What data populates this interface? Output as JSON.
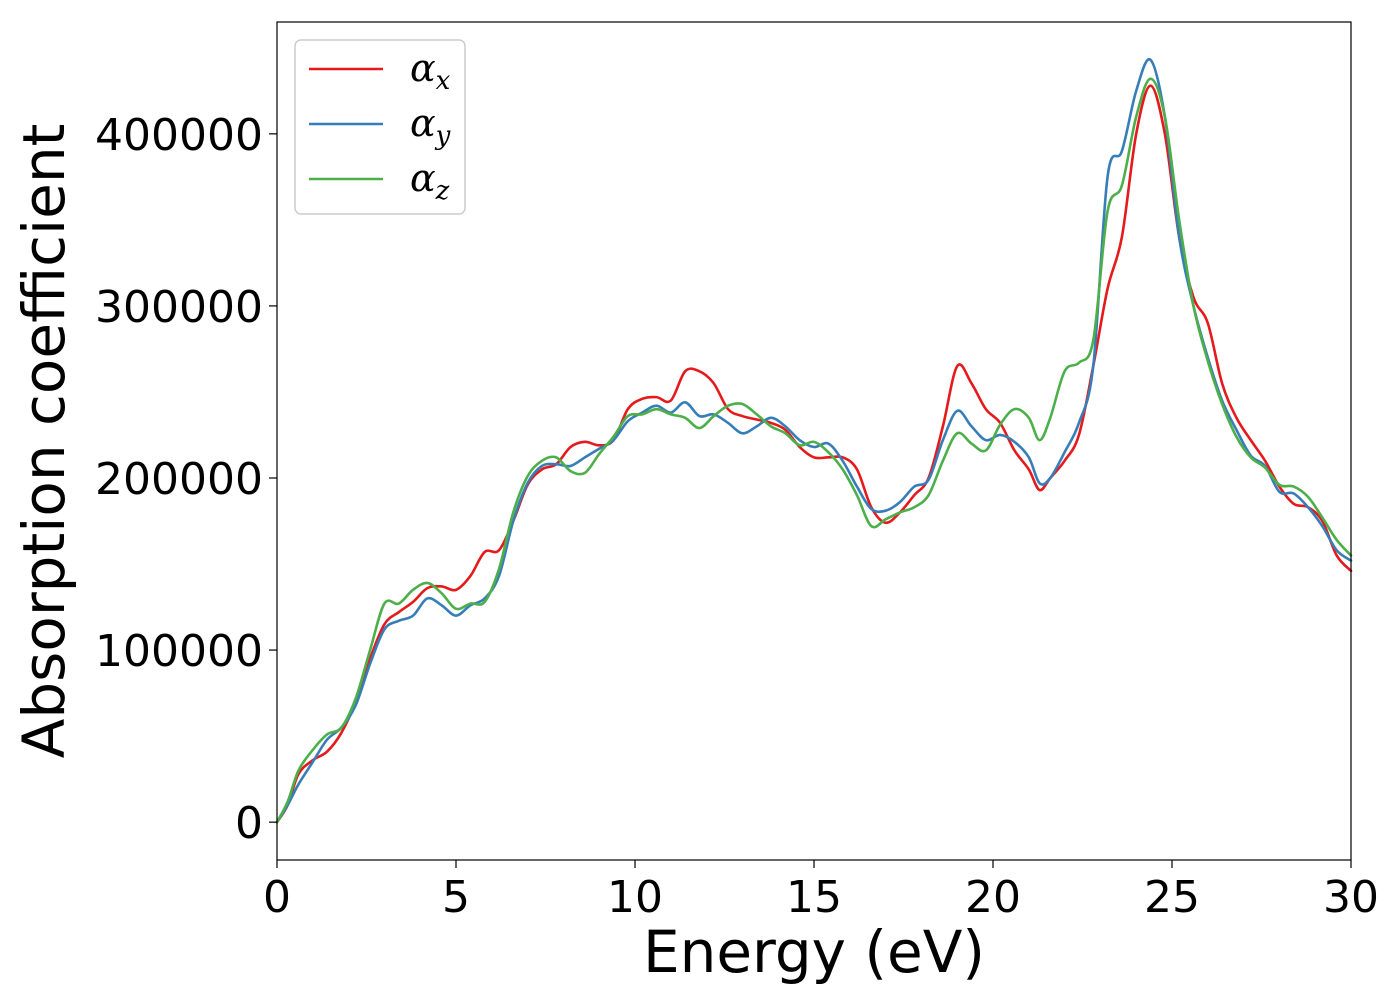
{
  "chart_data": {
    "type": "line",
    "title": "",
    "xlabel": "Energy (eV)",
    "ylabel": "Absorption coefficient",
    "xlim": [
      0,
      30
    ],
    "ylim": [
      -22000,
      465000
    ],
    "xticks": [
      0,
      5,
      10,
      15,
      20,
      25,
      30
    ],
    "yticks": [
      0,
      100000,
      200000,
      300000,
      400000
    ],
    "grid": false,
    "legend_position": "top-left",
    "series": [
      {
        "name": "α",
        "subscript": "x",
        "color": "#e41a1c",
        "points": [
          [
            0,
            0
          ],
          [
            0.3,
            10000
          ],
          [
            0.6,
            28000
          ],
          [
            1.0,
            36000
          ],
          [
            1.4,
            41000
          ],
          [
            1.8,
            52000
          ],
          [
            2.2,
            70000
          ],
          [
            2.6,
            95000
          ],
          [
            3.0,
            115000
          ],
          [
            3.4,
            122000
          ],
          [
            3.8,
            128000
          ],
          [
            4.2,
            136000
          ],
          [
            4.6,
            137000
          ],
          [
            5.0,
            135000
          ],
          [
            5.4,
            143000
          ],
          [
            5.8,
            157000
          ],
          [
            6.2,
            158000
          ],
          [
            6.6,
            175000
          ],
          [
            7.0,
            196000
          ],
          [
            7.4,
            205000
          ],
          [
            7.8,
            208000
          ],
          [
            8.2,
            218000
          ],
          [
            8.6,
            221000
          ],
          [
            9.0,
            219000
          ],
          [
            9.4,
            222000
          ],
          [
            9.8,
            240000
          ],
          [
            10.2,
            246000
          ],
          [
            10.6,
            247000
          ],
          [
            11.0,
            245000
          ],
          [
            11.4,
            262000
          ],
          [
            11.8,
            262000
          ],
          [
            12.2,
            255000
          ],
          [
            12.6,
            240000
          ],
          [
            13.0,
            236000
          ],
          [
            13.4,
            234000
          ],
          [
            13.8,
            232000
          ],
          [
            14.2,
            228000
          ],
          [
            14.6,
            218000
          ],
          [
            15.0,
            212000
          ],
          [
            15.4,
            212000
          ],
          [
            15.8,
            212000
          ],
          [
            16.2,
            205000
          ],
          [
            16.6,
            183000
          ],
          [
            17.0,
            174000
          ],
          [
            17.4,
            180000
          ],
          [
            17.8,
            190000
          ],
          [
            18.2,
            200000
          ],
          [
            18.6,
            230000
          ],
          [
            19.0,
            265000
          ],
          [
            19.4,
            255000
          ],
          [
            19.8,
            240000
          ],
          [
            20.2,
            232000
          ],
          [
            20.6,
            216000
          ],
          [
            21.0,
            205000
          ],
          [
            21.3,
            193000
          ],
          [
            21.6,
            200000
          ],
          [
            22.0,
            210000
          ],
          [
            22.4,
            225000
          ],
          [
            22.8,
            265000
          ],
          [
            23.2,
            310000
          ],
          [
            23.6,
            340000
          ],
          [
            24.0,
            400000
          ],
          [
            24.4,
            428000
          ],
          [
            24.8,
            400000
          ],
          [
            25.2,
            340000
          ],
          [
            25.6,
            305000
          ],
          [
            26.0,
            290000
          ],
          [
            26.4,
            255000
          ],
          [
            26.8,
            235000
          ],
          [
            27.2,
            222000
          ],
          [
            27.6,
            210000
          ],
          [
            28.0,
            195000
          ],
          [
            28.4,
            185000
          ],
          [
            28.8,
            183000
          ],
          [
            29.2,
            175000
          ],
          [
            29.6,
            155000
          ],
          [
            30.0,
            146000
          ]
        ]
      },
      {
        "name": "α",
        "subscript": "y",
        "color": "#377eb8",
        "points": [
          [
            0,
            0
          ],
          [
            0.3,
            10000
          ],
          [
            0.6,
            22000
          ],
          [
            1.0,
            35000
          ],
          [
            1.4,
            48000
          ],
          [
            1.8,
            55000
          ],
          [
            2.2,
            68000
          ],
          [
            2.6,
            92000
          ],
          [
            3.0,
            112000
          ],
          [
            3.4,
            117000
          ],
          [
            3.8,
            120000
          ],
          [
            4.2,
            130000
          ],
          [
            4.6,
            126000
          ],
          [
            5.0,
            120000
          ],
          [
            5.4,
            126000
          ],
          [
            5.8,
            130000
          ],
          [
            6.2,
            143000
          ],
          [
            6.6,
            175000
          ],
          [
            7.0,
            197000
          ],
          [
            7.4,
            207000
          ],
          [
            7.8,
            208000
          ],
          [
            8.2,
            207000
          ],
          [
            8.6,
            212000
          ],
          [
            9.0,
            217000
          ],
          [
            9.4,
            222000
          ],
          [
            9.8,
            233000
          ],
          [
            10.2,
            238000
          ],
          [
            10.6,
            242000
          ],
          [
            11.0,
            238000
          ],
          [
            11.4,
            244000
          ],
          [
            11.8,
            236000
          ],
          [
            12.2,
            237000
          ],
          [
            12.6,
            232000
          ],
          [
            13.0,
            226000
          ],
          [
            13.4,
            230000
          ],
          [
            13.8,
            235000
          ],
          [
            14.2,
            230000
          ],
          [
            14.6,
            222000
          ],
          [
            15.0,
            218000
          ],
          [
            15.4,
            220000
          ],
          [
            15.8,
            210000
          ],
          [
            16.2,
            195000
          ],
          [
            16.6,
            182000
          ],
          [
            17.0,
            181000
          ],
          [
            17.4,
            186000
          ],
          [
            17.8,
            195000
          ],
          [
            18.2,
            199000
          ],
          [
            18.6,
            222000
          ],
          [
            19.0,
            239000
          ],
          [
            19.4,
            230000
          ],
          [
            19.8,
            222000
          ],
          [
            20.2,
            225000
          ],
          [
            20.6,
            221000
          ],
          [
            21.0,
            212000
          ],
          [
            21.3,
            197000
          ],
          [
            21.6,
            200000
          ],
          [
            22.0,
            215000
          ],
          [
            22.4,
            232000
          ],
          [
            22.8,
            265000
          ],
          [
            23.2,
            375000
          ],
          [
            23.6,
            390000
          ],
          [
            24.0,
            425000
          ],
          [
            24.4,
            443000
          ],
          [
            24.8,
            410000
          ],
          [
            25.2,
            340000
          ],
          [
            25.6,
            300000
          ],
          [
            26.0,
            270000
          ],
          [
            26.4,
            245000
          ],
          [
            26.8,
            228000
          ],
          [
            27.2,
            213000
          ],
          [
            27.6,
            207000
          ],
          [
            28.0,
            192000
          ],
          [
            28.4,
            191000
          ],
          [
            28.8,
            183000
          ],
          [
            29.2,
            172000
          ],
          [
            29.6,
            158000
          ],
          [
            30.0,
            152000
          ]
        ]
      },
      {
        "name": "α",
        "subscript": "z",
        "color": "#4daf4a",
        "points": [
          [
            0,
            0
          ],
          [
            0.3,
            12000
          ],
          [
            0.6,
            30000
          ],
          [
            1.0,
            42000
          ],
          [
            1.4,
            51000
          ],
          [
            1.8,
            55000
          ],
          [
            2.2,
            72000
          ],
          [
            2.6,
            100000
          ],
          [
            3.0,
            127000
          ],
          [
            3.4,
            127000
          ],
          [
            3.8,
            135000
          ],
          [
            4.2,
            139000
          ],
          [
            4.6,
            133000
          ],
          [
            5.0,
            124000
          ],
          [
            5.4,
            127000
          ],
          [
            5.8,
            128000
          ],
          [
            6.2,
            147000
          ],
          [
            6.6,
            180000
          ],
          [
            7.0,
            201000
          ],
          [
            7.4,
            210000
          ],
          [
            7.8,
            212000
          ],
          [
            8.2,
            204000
          ],
          [
            8.6,
            203000
          ],
          [
            9.0,
            214000
          ],
          [
            9.4,
            224000
          ],
          [
            9.8,
            236000
          ],
          [
            10.2,
            237000
          ],
          [
            10.6,
            240000
          ],
          [
            11.0,
            237000
          ],
          [
            11.4,
            235000
          ],
          [
            11.8,
            229000
          ],
          [
            12.2,
            236000
          ],
          [
            12.6,
            242000
          ],
          [
            13.0,
            243000
          ],
          [
            13.4,
            237000
          ],
          [
            13.8,
            230000
          ],
          [
            14.2,
            226000
          ],
          [
            14.6,
            219000
          ],
          [
            15.0,
            221000
          ],
          [
            15.4,
            215000
          ],
          [
            15.8,
            205000
          ],
          [
            16.2,
            190000
          ],
          [
            16.6,
            172000
          ],
          [
            17.0,
            176000
          ],
          [
            17.4,
            180000
          ],
          [
            17.8,
            183000
          ],
          [
            18.2,
            190000
          ],
          [
            18.6,
            210000
          ],
          [
            19.0,
            226000
          ],
          [
            19.4,
            220000
          ],
          [
            19.8,
            216000
          ],
          [
            20.2,
            231000
          ],
          [
            20.6,
            240000
          ],
          [
            21.0,
            235000
          ],
          [
            21.3,
            222000
          ],
          [
            21.6,
            235000
          ],
          [
            22.0,
            262000
          ],
          [
            22.4,
            267000
          ],
          [
            22.8,
            280000
          ],
          [
            23.2,
            355000
          ],
          [
            23.6,
            370000
          ],
          [
            24.0,
            410000
          ],
          [
            24.4,
            432000
          ],
          [
            24.8,
            410000
          ],
          [
            25.2,
            350000
          ],
          [
            25.6,
            300000
          ],
          [
            26.0,
            268000
          ],
          [
            26.4,
            243000
          ],
          [
            26.8,
            224000
          ],
          [
            27.2,
            212000
          ],
          [
            27.6,
            206000
          ],
          [
            28.0,
            196000
          ],
          [
            28.4,
            195000
          ],
          [
            28.8,
            189000
          ],
          [
            29.2,
            177000
          ],
          [
            29.6,
            164000
          ],
          [
            30.0,
            155000
          ]
        ]
      }
    ]
  }
}
